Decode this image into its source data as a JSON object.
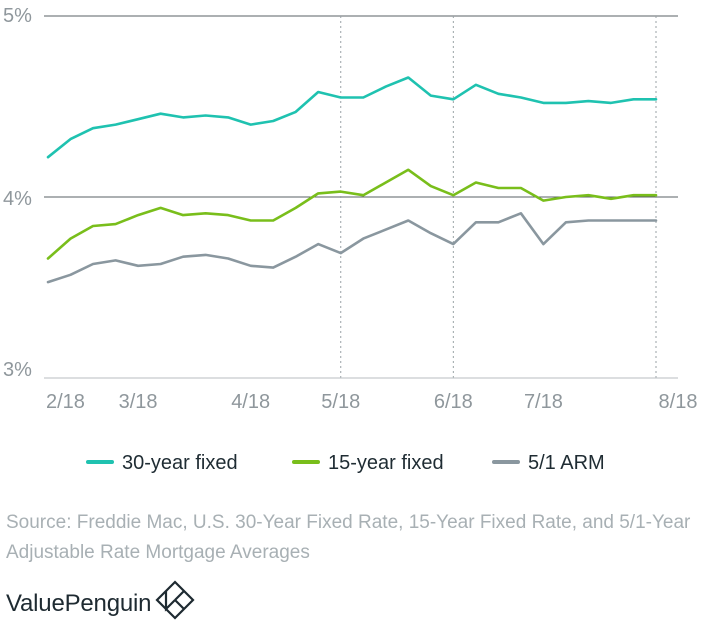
{
  "chart_data": {
    "type": "line",
    "title": "",
    "xlabel": "",
    "ylabel": "",
    "y_unit": "%",
    "ylim": [
      3.0,
      5.0
    ],
    "y_ticks": [
      {
        "value": 3.0,
        "label": "3%"
      },
      {
        "value": 4.0,
        "label": "4%"
      },
      {
        "value": 5.0,
        "label": "5%"
      }
    ],
    "x_range": [
      "2018-02-01",
      "2018-08-09"
    ],
    "x_ticks": [
      {
        "date": "2018-02-01",
        "label": "2/18"
      },
      {
        "date": "2018-03-01",
        "label": "3/18"
      },
      {
        "date": "2018-04-05",
        "label": "4/18"
      },
      {
        "date": "2018-05-03",
        "label": "5/18"
      },
      {
        "date": "2018-06-07",
        "label": "6/18"
      },
      {
        "date": "2018-07-05",
        "label": "7/18"
      },
      {
        "date": "2018-08-09",
        "label": "8/18"
      }
    ],
    "vertical_gridlines": [
      "2018-05-03",
      "2018-06-07",
      "2018-08-09"
    ],
    "horizontal_gridlines": [
      4.0,
      5.0
    ],
    "x": [
      "2018-02-01",
      "2018-02-08",
      "2018-02-15",
      "2018-02-22",
      "2018-03-01",
      "2018-03-08",
      "2018-03-15",
      "2018-03-22",
      "2018-03-29",
      "2018-04-05",
      "2018-04-12",
      "2018-04-19",
      "2018-04-26",
      "2018-05-03",
      "2018-05-10",
      "2018-05-17",
      "2018-05-24",
      "2018-05-31",
      "2018-06-07",
      "2018-06-14",
      "2018-06-21",
      "2018-06-28",
      "2018-07-05",
      "2018-07-12",
      "2018-07-19",
      "2018-07-26",
      "2018-08-02",
      "2018-08-09"
    ],
    "series": [
      {
        "name": "30-year fixed",
        "color": "#1fc2b0",
        "values": [
          4.22,
          4.32,
          4.38,
          4.4,
          4.43,
          4.46,
          4.44,
          4.45,
          4.44,
          4.4,
          4.42,
          4.47,
          4.58,
          4.55,
          4.55,
          4.61,
          4.66,
          4.56,
          4.54,
          4.62,
          4.57,
          4.55,
          4.52,
          4.52,
          4.53,
          4.52,
          4.54,
          4.54
        ]
      },
      {
        "name": "15-year fixed",
        "color": "#79be1b",
        "values": [
          3.66,
          3.77,
          3.84,
          3.85,
          3.9,
          3.94,
          3.9,
          3.91,
          3.9,
          3.87,
          3.87,
          3.94,
          4.02,
          4.03,
          4.01,
          4.08,
          4.15,
          4.06,
          4.01,
          4.08,
          4.05,
          4.05,
          3.98,
          4.0,
          4.01,
          3.99,
          4.01,
          4.01
        ]
      },
      {
        "name": "5/1 ARM",
        "color": "#8a979f",
        "values": [
          3.53,
          3.57,
          3.63,
          3.65,
          3.62,
          3.63,
          3.67,
          3.68,
          3.66,
          3.62,
          3.61,
          3.67,
          3.74,
          3.69,
          3.77,
          3.82,
          3.87,
          3.8,
          3.74,
          3.86,
          3.86,
          3.91,
          3.74,
          3.86,
          3.87,
          3.87,
          3.87,
          3.87
        ]
      }
    ],
    "legend_position": "bottom"
  },
  "footer": {
    "source": "Source: Freddie Mac, U.S. 30-Year Fixed Rate, 15-Year Fixed Rate, and 5/1-Year Adjustable Rate Mortgage Averages",
    "brand": "ValuePenguin"
  }
}
